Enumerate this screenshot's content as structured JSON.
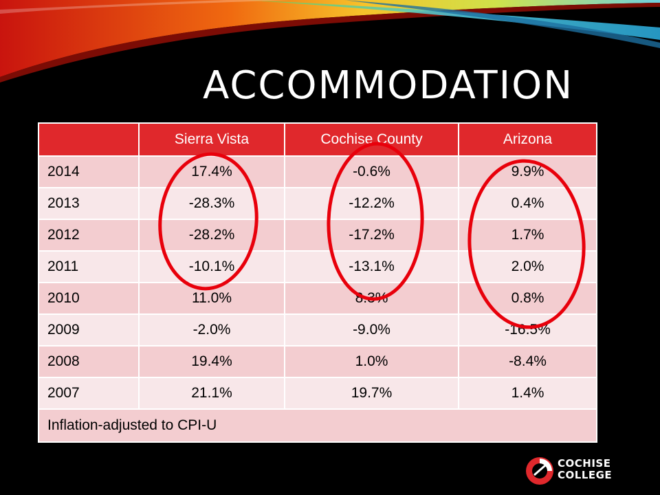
{
  "slide": {
    "title": "ACCOMMODATION"
  },
  "table": {
    "columns": [
      "",
      "Sierra Vista",
      "Cochise County",
      "Arizona"
    ],
    "rows": [
      {
        "year": "2014",
        "sierra_vista": "17.4%",
        "cochise_county": "-0.6%",
        "arizona": "9.9%"
      },
      {
        "year": "2013",
        "sierra_vista": "-28.3%",
        "cochise_county": "-12.2%",
        "arizona": "0.4%"
      },
      {
        "year": "2012",
        "sierra_vista": "-28.2%",
        "cochise_county": "-17.2%",
        "arizona": "1.7%"
      },
      {
        "year": "2011",
        "sierra_vista": "-10.1%",
        "cochise_county": "-13.1%",
        "arizona": "2.0%"
      },
      {
        "year": "2010",
        "sierra_vista": "11.0%",
        "cochise_county": "8.3%",
        "arizona": "0.8%"
      },
      {
        "year": "2009",
        "sierra_vista": "-2.0%",
        "cochise_county": "-9.0%",
        "arizona": "-16.5%"
      },
      {
        "year": "2008",
        "sierra_vista": "19.4%",
        "cochise_county": "1.0%",
        "arizona": "-8.4%"
      },
      {
        "year": "2007",
        "sierra_vista": "21.1%",
        "cochise_county": "19.7%",
        "arizona": "1.4%"
      }
    ],
    "footnote": "Inflation-adjusted to CPI-U"
  },
  "logo": {
    "line1": "COCHISE",
    "line2": "COLLEGE"
  },
  "colors": {
    "background": "#000000",
    "header_red": "#e0282c",
    "row_band_dark": "#f3cdd0",
    "row_band_light": "#f8e7e9",
    "annotation_red": "#e8000b"
  }
}
